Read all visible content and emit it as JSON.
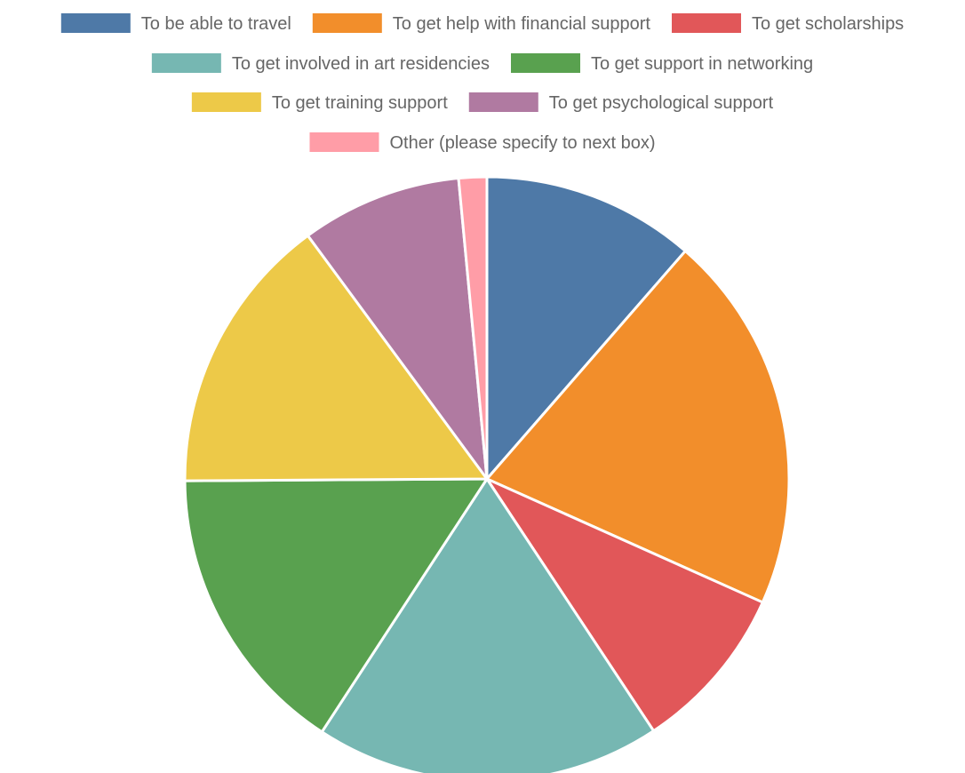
{
  "chart_data": {
    "type": "pie",
    "legend_position": "top",
    "series": [
      {
        "label": "To be able to travel",
        "value": 11.4,
        "color": "#4e79a7"
      },
      {
        "label": "To get help with financial support",
        "value": 20.3,
        "color": "#f28e2b"
      },
      {
        "label": "To get scholarships",
        "value": 9.0,
        "color": "#e15759"
      },
      {
        "label": "To get involved in art residencies",
        "value": 18.5,
        "color": "#76b7b2"
      },
      {
        "label": "To get support in networking",
        "value": 15.7,
        "color": "#59a14f"
      },
      {
        "label": "To get training support",
        "value": 15.0,
        "color": "#edc948"
      },
      {
        "label": "To get psychological support",
        "value": 8.6,
        "color": "#b07aa1"
      },
      {
        "label": "Other (please specify to next box)",
        "value": 1.5,
        "color": "#ff9da7"
      }
    ]
  }
}
